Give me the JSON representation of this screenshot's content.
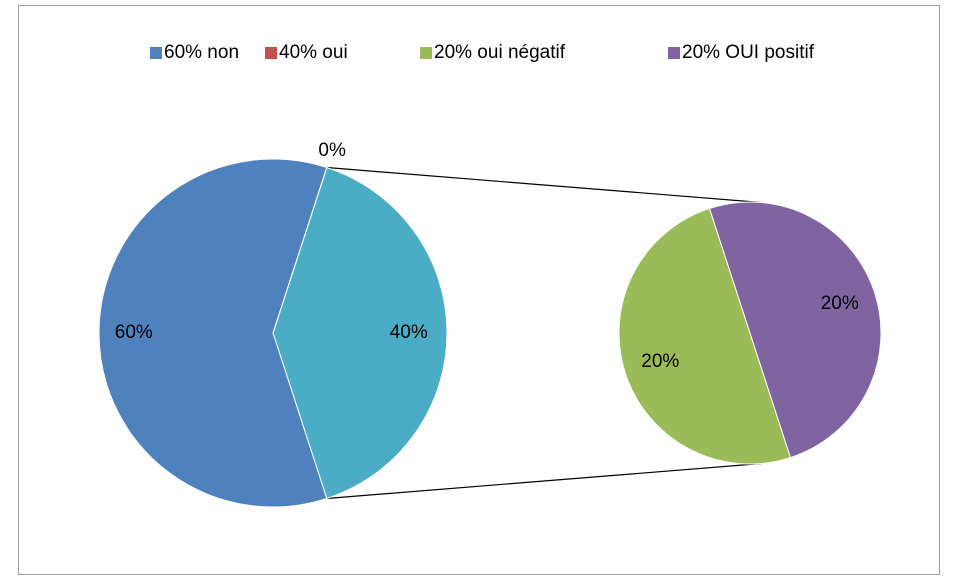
{
  "chart_data": {
    "type": "pie-of-pie",
    "categories": [
      "60% non",
      "40% oui",
      "20% oui négatif",
      "20% OUI positif"
    ],
    "values": [
      60,
      0,
      20,
      20
    ],
    "value_labels": [
      "60%",
      "0%",
      "20%",
      "20%"
    ],
    "colors": [
      "#4f81bd",
      "#c0504d",
      "#9bbb59",
      "#8064a2"
    ],
    "secondary": [
      2,
      3
    ],
    "other": {
      "value": 40,
      "label": "40%",
      "color": "#4bacc6"
    },
    "legend": "top"
  }
}
